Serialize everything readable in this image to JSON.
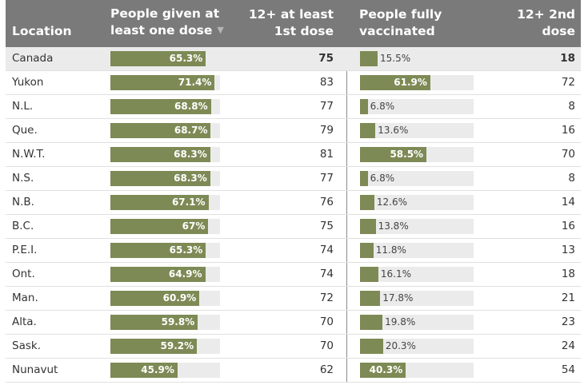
{
  "header": {
    "location": "Location",
    "dose1": [
      "People given at",
      "least one dose"
    ],
    "age1": [
      "12+ at least",
      "1st dose"
    ],
    "full": [
      "People fully",
      "vaccinated"
    ],
    "age2": [
      "12+ 2nd",
      "dose"
    ]
  },
  "rows": [
    {
      "location": "Canada",
      "dose1_pct": 65.3,
      "dose1_label": "65.3%",
      "age12_first": "75",
      "full_pct": 15.5,
      "full_label": "15.5%",
      "age12_second": "18"
    },
    {
      "location": "Yukon",
      "dose1_pct": 71.4,
      "dose1_label": "71.4%",
      "age12_first": "83",
      "full_pct": 61.9,
      "full_label": "61.9%",
      "age12_second": "72"
    },
    {
      "location": "N.L.",
      "dose1_pct": 68.8,
      "dose1_label": "68.8%",
      "age12_first": "77",
      "full_pct": 6.8,
      "full_label": "6.8%",
      "age12_second": "8"
    },
    {
      "location": "Que.",
      "dose1_pct": 68.7,
      "dose1_label": "68.7%",
      "age12_first": "79",
      "full_pct": 13.6,
      "full_label": "13.6%",
      "age12_second": "16"
    },
    {
      "location": "N.W.T.",
      "dose1_pct": 68.3,
      "dose1_label": "68.3%",
      "age12_first": "81",
      "full_pct": 58.5,
      "full_label": "58.5%",
      "age12_second": "70"
    },
    {
      "location": "N.S.",
      "dose1_pct": 68.3,
      "dose1_label": "68.3%",
      "age12_first": "77",
      "full_pct": 6.8,
      "full_label": "6.8%",
      "age12_second": "8"
    },
    {
      "location": "N.B.",
      "dose1_pct": 67.1,
      "dose1_label": "67.1%",
      "age12_first": "76",
      "full_pct": 12.6,
      "full_label": "12.6%",
      "age12_second": "14"
    },
    {
      "location": "B.C.",
      "dose1_pct": 67,
      "dose1_label": "67%",
      "age12_first": "75",
      "full_pct": 13.8,
      "full_label": "13.8%",
      "age12_second": "16"
    },
    {
      "location": "P.E.I.",
      "dose1_pct": 65.3,
      "dose1_label": "65.3%",
      "age12_first": "74",
      "full_pct": 11.8,
      "full_label": "11.8%",
      "age12_second": "13"
    },
    {
      "location": "Ont.",
      "dose1_pct": 64.9,
      "dose1_label": "64.9%",
      "age12_first": "74",
      "full_pct": 16.1,
      "full_label": "16.1%",
      "age12_second": "18"
    },
    {
      "location": "Man.",
      "dose1_pct": 60.9,
      "dose1_label": "60.9%",
      "age12_first": "72",
      "full_pct": 17.8,
      "full_label": "17.8%",
      "age12_second": "21"
    },
    {
      "location": "Alta.",
      "dose1_pct": 59.8,
      "dose1_label": "59.8%",
      "age12_first": "70",
      "full_pct": 19.8,
      "full_label": "19.8%",
      "age12_second": "23"
    },
    {
      "location": "Sask.",
      "dose1_pct": 59.2,
      "dose1_label": "59.2%",
      "age12_first": "70",
      "full_pct": 20.3,
      "full_label": "20.3%",
      "age12_second": "24"
    },
    {
      "location": "Nunavut",
      "dose1_pct": 45.9,
      "dose1_label": "45.9%",
      "age12_first": "62",
      "full_pct": 40.3,
      "full_label": "40.3%",
      "age12_second": "54"
    }
  ],
  "colors": {
    "header_bg": "#7a7a7a",
    "bar": "#7d8a55",
    "track": "#ebebeb",
    "highlight_row": "#ebebeb"
  },
  "icons": {
    "sort": "sort-down-triangle"
  }
}
